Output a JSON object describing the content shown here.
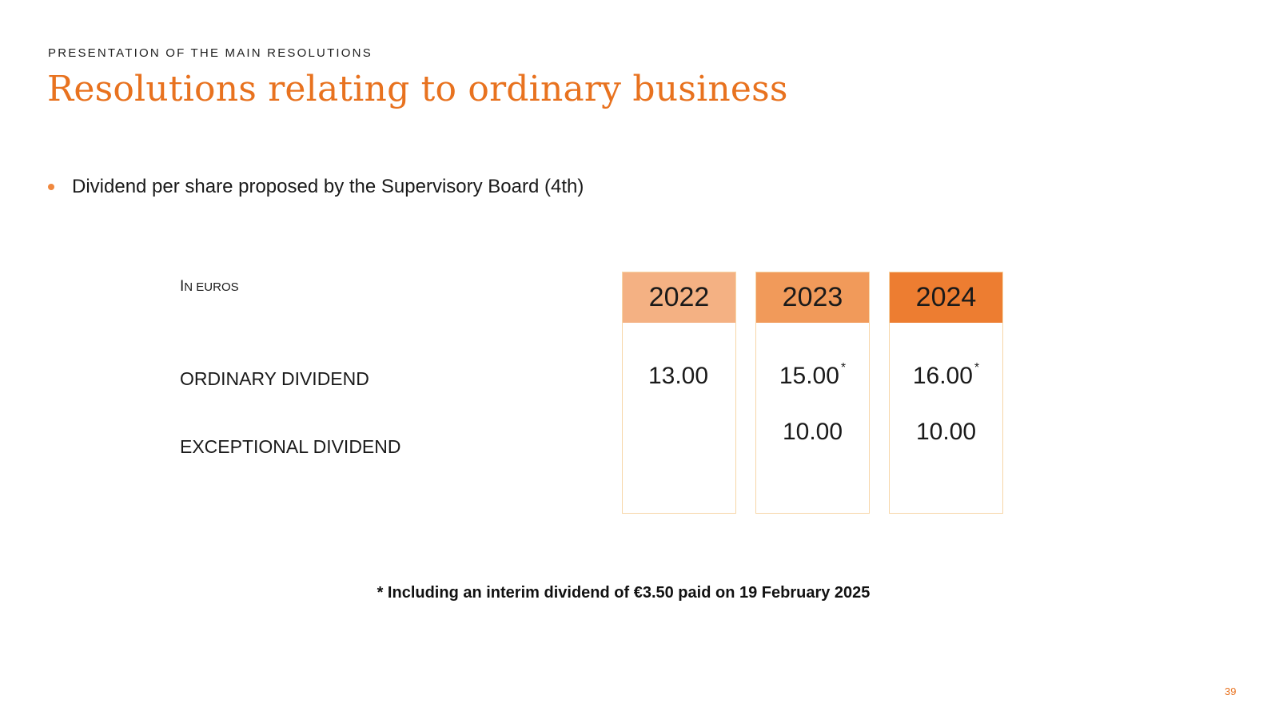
{
  "header": {
    "kicker": "PRESENTATION OF THE MAIN RESOLUTIONS",
    "title": "Resolutions relating to ordinary business"
  },
  "bullet": {
    "text": "Dividend per share proposed by the Supervisory Board (4th)"
  },
  "table": {
    "unit_label": "In euros",
    "row_labels": {
      "ordinary": "ORDINARY DIVIDEND",
      "exceptional": "EXCEPTIONAL DIVIDEND"
    },
    "columns": [
      {
        "year": "2022",
        "header_color": "#f4b183",
        "ordinary": "13.00",
        "ordinary_note": "",
        "exceptional": ""
      },
      {
        "year": "2023",
        "header_color": "#f19a5a",
        "ordinary": "15.00",
        "ordinary_note": "*",
        "exceptional": "10.00"
      },
      {
        "year": "2024",
        "header_color": "#ed7d31",
        "ordinary": "16.00",
        "ordinary_note": "*",
        "exceptional": "10.00"
      }
    ]
  },
  "footnote": "* Including an interim dividend of €3.50 paid on 19 February 2025",
  "page_number": "39",
  "colors": {
    "accent": "#e8721f",
    "bullet": "#f0883e",
    "column_border": "#f7d6a8"
  }
}
